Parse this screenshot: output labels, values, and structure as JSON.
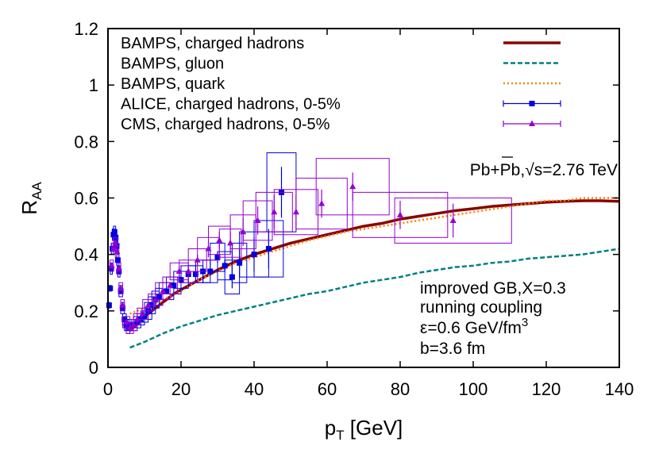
{
  "chart_data": {
    "type": "line",
    "xlabel_main": "p",
    "xlabel_sub": "T",
    "xlabel_unit": " [GeV]",
    "ylabel_main": "R",
    "ylabel_sub": "AA",
    "xlim": [
      0,
      140
    ],
    "ylim": [
      0,
      1.2
    ],
    "xticks": [
      0,
      20,
      40,
      60,
      80,
      100,
      120,
      140
    ],
    "yticks": [
      0,
      0.2,
      0.4,
      0.6,
      0.8,
      1.0,
      1.2
    ],
    "ytick_labels": [
      "0",
      "0.2",
      "0.4",
      "0.6",
      "0.8",
      "1",
      "1.2"
    ],
    "grid": false,
    "legend_position": "top-left",
    "annotation_top": {
      "prefix": "Pb+Pb,",
      "sqrt": "√s",
      "suffix": "=2.76 TeV"
    },
    "annotation_bottom": {
      "line1": "improved GB,X=0.3",
      "line2": "running coupling",
      "line3_main": "ε=0.6 GeV/fm",
      "line3_sup": "3",
      "line4": "b=3.6 fm"
    },
    "series": [
      {
        "name": "BAMPS, charged hadrons",
        "kind": "line",
        "color": "#8b0000",
        "style": "solid",
        "x": [
          6,
          8,
          10,
          12,
          15,
          18,
          20,
          25,
          30,
          35,
          40,
          45,
          50,
          55,
          60,
          65,
          70,
          75,
          80,
          85,
          90,
          95,
          100,
          105,
          110,
          115,
          120,
          125,
          130,
          135,
          140
        ],
        "y": [
          0.13,
          0.155,
          0.18,
          0.2,
          0.23,
          0.26,
          0.275,
          0.31,
          0.345,
          0.375,
          0.4,
          0.42,
          0.44,
          0.455,
          0.47,
          0.485,
          0.5,
          0.51,
          0.525,
          0.535,
          0.545,
          0.555,
          0.562,
          0.57,
          0.575,
          0.58,
          0.585,
          0.588,
          0.59,
          0.59,
          0.588
        ]
      },
      {
        "name": "BAMPS, gluon",
        "kind": "line",
        "color": "#008080",
        "style": "dashed",
        "x": [
          6,
          10,
          15,
          20,
          25,
          30,
          35,
          40,
          45,
          50,
          55,
          60,
          65,
          70,
          75,
          80,
          85,
          90,
          95,
          100,
          105,
          110,
          115,
          120,
          125,
          130,
          135,
          140
        ],
        "y": [
          0.07,
          0.09,
          0.12,
          0.145,
          0.165,
          0.185,
          0.2,
          0.215,
          0.23,
          0.245,
          0.26,
          0.27,
          0.285,
          0.3,
          0.31,
          0.32,
          0.335,
          0.345,
          0.355,
          0.36,
          0.37,
          0.375,
          0.385,
          0.39,
          0.395,
          0.4,
          0.41,
          0.42
        ]
      },
      {
        "name": "BAMPS, quark",
        "kind": "line",
        "color": "#ff7f00",
        "style": "dotted",
        "x": [
          6,
          8,
          10,
          12,
          15,
          20,
          25,
          30,
          35,
          40,
          45,
          50,
          55,
          60,
          65,
          70,
          75,
          80,
          85,
          90,
          95,
          100,
          105,
          110,
          115,
          120,
          125,
          130,
          135,
          140
        ],
        "y": [
          0.19,
          0.2,
          0.21,
          0.22,
          0.24,
          0.27,
          0.31,
          0.34,
          0.37,
          0.39,
          0.41,
          0.43,
          0.45,
          0.465,
          0.48,
          0.49,
          0.5,
          0.51,
          0.52,
          0.53,
          0.54,
          0.55,
          0.56,
          0.57,
          0.58,
          0.59,
          0.59,
          0.6,
          0.6,
          0.6
        ]
      },
      {
        "name": "ALICE, charged hadrons, 0-5%",
        "kind": "points",
        "color": "#0000dd",
        "marker": "square",
        "x": [
          0.3,
          0.6,
          0.9,
          1.2,
          1.5,
          1.8,
          2.1,
          2.4,
          2.7,
          3.0,
          3.5,
          4.0,
          4.5,
          5.0,
          5.5,
          6.0,
          7.0,
          8.0,
          9.0,
          10.0,
          11.0,
          12.0,
          13.0,
          14.0,
          16.0,
          18.0,
          20.0,
          22.0,
          24.0,
          26.0,
          28.0,
          30.0,
          32.0,
          34.0,
          36.0,
          40.0,
          44.0,
          47.5
        ],
        "y": [
          0.22,
          0.28,
          0.35,
          0.42,
          0.47,
          0.48,
          0.46,
          0.43,
          0.38,
          0.34,
          0.27,
          0.21,
          0.17,
          0.15,
          0.14,
          0.15,
          0.15,
          0.16,
          0.17,
          0.18,
          0.2,
          0.22,
          0.24,
          0.25,
          0.27,
          0.29,
          0.31,
          0.33,
          0.33,
          0.34,
          0.34,
          0.39,
          0.36,
          0.32,
          0.37,
          0.4,
          0.42,
          0.62
        ],
        "yerr": [
          0.01,
          0.01,
          0.01,
          0.01,
          0.01,
          0.01,
          0.01,
          0.01,
          0.01,
          0.01,
          0.01,
          0.01,
          0.01,
          0.01,
          0.01,
          0.01,
          0.01,
          0.01,
          0.01,
          0.01,
          0.01,
          0.01,
          0.01,
          0.01,
          0.01,
          0.01,
          0.01,
          0.01,
          0.01,
          0.01,
          0.01,
          0.02,
          0.02,
          0.04,
          0.05,
          0.06,
          0.07,
          0.09
        ],
        "sys": [
          0.01,
          0.01,
          0.02,
          0.02,
          0.02,
          0.02,
          0.02,
          0.02,
          0.02,
          0.02,
          0.02,
          0.02,
          0.02,
          0.02,
          0.02,
          0.02,
          0.02,
          0.02,
          0.02,
          0.02,
          0.03,
          0.03,
          0.03,
          0.03,
          0.03,
          0.03,
          0.03,
          0.03,
          0.03,
          0.04,
          0.04,
          0.05,
          0.05,
          0.06,
          0.07,
          0.08,
          0.1,
          0.14
        ],
        "xwidth": [
          0.3,
          0.3,
          0.3,
          0.3,
          0.3,
          0.3,
          0.3,
          0.3,
          0.3,
          0.3,
          0.5,
          0.5,
          0.5,
          0.5,
          0.5,
          0.5,
          1,
          1,
          1,
          1,
          1,
          1,
          1,
          1,
          2,
          2,
          2,
          2,
          2,
          2,
          2,
          2,
          2,
          2,
          2,
          4,
          4,
          4
        ]
      },
      {
        "name": "CMS, charged hadrons, 0-5%",
        "kind": "points",
        "color": "#9400d3",
        "marker": "triangle",
        "x": [
          1.0,
          1.5,
          2.0,
          2.5,
          3.0,
          3.5,
          4.0,
          5.0,
          6.0,
          7.0,
          8.0,
          9.5,
          11.0,
          13.0,
          15.0,
          17.0,
          19.5,
          22.0,
          24.5,
          27.5,
          30.5,
          33.5,
          37.0,
          41.0,
          45.5,
          51.5,
          58.5,
          67.0,
          80.0,
          94.5
        ],
        "y": [
          0.36,
          0.42,
          0.44,
          0.41,
          0.35,
          0.28,
          0.22,
          0.16,
          0.14,
          0.15,
          0.17,
          0.19,
          0.22,
          0.24,
          0.27,
          0.29,
          0.34,
          0.34,
          0.38,
          0.42,
          0.45,
          0.44,
          0.48,
          0.52,
          0.55,
          0.55,
          0.58,
          0.64,
          0.54,
          0.52
        ],
        "yerr": [
          0.01,
          0.01,
          0.01,
          0.01,
          0.01,
          0.01,
          0.01,
          0.01,
          0.01,
          0.01,
          0.01,
          0.01,
          0.01,
          0.01,
          0.01,
          0.01,
          0.02,
          0.02,
          0.02,
          0.03,
          0.03,
          0.04,
          0.05,
          0.05,
          0.06,
          0.06,
          0.05,
          0.05,
          0.05,
          0.06
        ],
        "sys": [
          0.02,
          0.02,
          0.02,
          0.02,
          0.02,
          0.02,
          0.02,
          0.02,
          0.02,
          0.02,
          0.02,
          0.02,
          0.02,
          0.02,
          0.03,
          0.03,
          0.03,
          0.04,
          0.04,
          0.04,
          0.05,
          0.05,
          0.06,
          0.07,
          0.07,
          0.08,
          0.09,
          0.1,
          0.08,
          0.08
        ],
        "xwidth": [
          0.5,
          0.5,
          0.5,
          0.5,
          0.5,
          0.5,
          0.5,
          1,
          1,
          1,
          1,
          1.5,
          1.5,
          2,
          2,
          2,
          2.5,
          2.5,
          2.5,
          3,
          3,
          3,
          3.5,
          4,
          5,
          6,
          7,
          10,
          13,
          16
        ]
      }
    ]
  }
}
